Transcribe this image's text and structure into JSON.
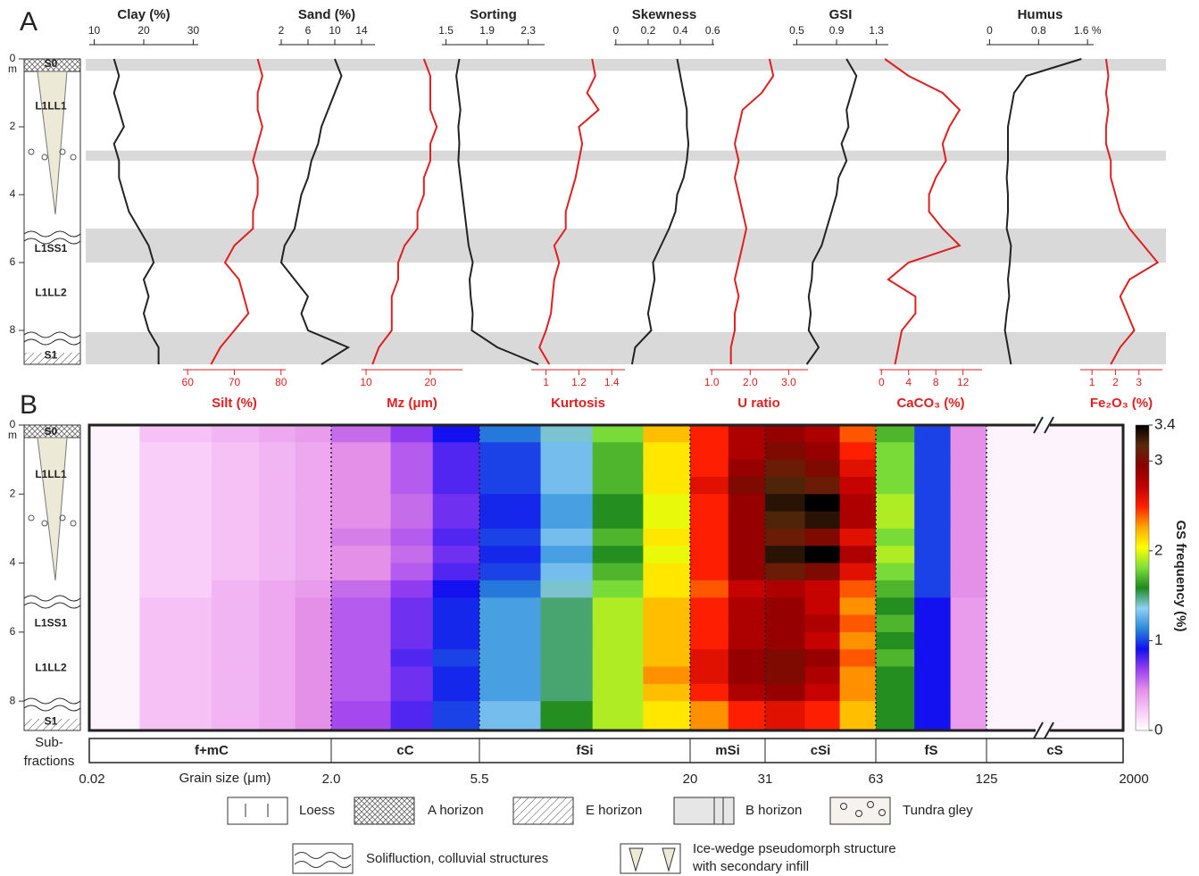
{
  "units": [
    "S0",
    "L1LL1",
    "L1SS1",
    "L1LL2",
    "S1"
  ],
  "legend": [
    [
      "Loess"
    ],
    [
      "A horizon"
    ],
    [
      "E horizon"
    ],
    [
      "B horizon"
    ],
    [
      "Tundra gley"
    ],
    [
      "Solifluction, colluvial structures"
    ],
    [
      "Ice-wedge pseudomorph structure",
      "with secondary infill"
    ]
  ],
  "chart_data": [
    {
      "type": "profile",
      "panel": "A",
      "depth": [
        0,
        0.5,
        1,
        1.5,
        2,
        2.5,
        3,
        3.5,
        4,
        4.5,
        5,
        5.5,
        6,
        6.5,
        7,
        7.5,
        8,
        8.5,
        9
      ],
      "ylim": [
        0,
        9
      ],
      "yticks": [
        0,
        2,
        4,
        6,
        8
      ],
      "depth_unit": "m",
      "bands": [
        [
          0,
          0.35
        ],
        [
          2.7,
          3.0
        ],
        [
          5.0,
          6.0
        ],
        [
          8.05,
          9.0
        ]
      ],
      "band_color": "#d9d9d9",
      "series": [
        {
          "name": "Clay (%)",
          "axis": "top",
          "color": "#222222",
          "xlim": [
            9,
            31
          ],
          "xticks": [
            10,
            20,
            30
          ],
          "values": [
            14,
            15,
            14,
            15,
            16,
            14,
            15,
            15,
            16,
            17,
            19,
            21,
            22,
            20,
            21,
            20,
            21,
            23,
            23
          ]
        },
        {
          "name": "Silt (%)",
          "axis": "bottom",
          "color": "#e02020",
          "xlim": [
            59,
            81
          ],
          "xticks": [
            60,
            70,
            80
          ],
          "values": [
            75,
            76,
            75,
            75,
            76,
            75,
            74,
            75,
            75,
            74,
            74,
            70,
            68,
            71,
            72,
            73,
            70,
            67,
            65
          ]
        },
        {
          "name": "Sand (%)",
          "axis": "top",
          "color": "#222222",
          "xlim": [
            1.6,
            16
          ],
          "xticks": [
            2,
            6,
            10,
            14
          ],
          "values": [
            10,
            11,
            10,
            9,
            8,
            7.5,
            6.5,
            6,
            5,
            4.5,
            4,
            2.5,
            2,
            4,
            6,
            5,
            6,
            12,
            8
          ]
        },
        {
          "name": "Mz (μm)",
          "axis": "bottom",
          "color": "#e02020",
          "xlim": [
            9.3,
            25
          ],
          "xticks": [
            10,
            20
          ],
          "values": [
            19,
            20,
            20,
            20,
            21,
            20,
            20,
            19,
            19,
            18,
            18,
            16,
            15,
            15,
            14,
            14,
            14,
            12,
            11
          ]
        },
        {
          "name": "Sorting",
          "axis": "top",
          "color": "#222222",
          "xlim": [
            1.46,
            2.46
          ],
          "xticks": [
            1.5,
            1.9,
            2.3
          ],
          "values": [
            1.63,
            1.6,
            1.62,
            1.64,
            1.62,
            1.63,
            1.62,
            1.64,
            1.66,
            1.68,
            1.7,
            1.72,
            1.76,
            1.73,
            1.74,
            1.76,
            1.75,
            2.0,
            2.4
          ]
        },
        {
          "name": "Kurtosis",
          "axis": "bottom",
          "color": "#e02020",
          "xlim": [
            0.91,
            1.48
          ],
          "xticks": [
            1,
            1.2,
            1.4
          ],
          "values": [
            1.28,
            1.3,
            1.25,
            1.32,
            1.2,
            1.22,
            1.2,
            1.18,
            1.15,
            1.12,
            1.12,
            1.05,
            1.08,
            1.05,
            1.04,
            1.03,
            1.0,
            0.96,
            1.02
          ]
        },
        {
          "name": "Skewness",
          "axis": "top",
          "color": "#222222",
          "xlim": [
            -0.01,
            0.61
          ],
          "xticks": [
            0,
            0.2,
            0.4,
            0.6
          ],
          "values": [
            0.38,
            0.4,
            0.42,
            0.44,
            0.44,
            0.45,
            0.44,
            0.42,
            0.38,
            0.37,
            0.33,
            0.28,
            0.23,
            0.24,
            0.22,
            0.2,
            0.22,
            0.12,
            0.1
          ]
        },
        {
          "name": "U  ratio",
          "axis": "bottom",
          "color": "#e02020",
          "xlim": [
            0.95,
            3.5
          ],
          "xticks": [
            {
              "value": 1,
              "label": "1.0"
            },
            {
              "value": 2,
              "label": "2.0"
            },
            {
              "value": 3,
              "label": "3.0"
            }
          ],
          "values": [
            2.5,
            2.6,
            2.3,
            1.8,
            1.7,
            1.6,
            1.7,
            1.6,
            1.7,
            1.8,
            1.9,
            1.8,
            1.7,
            1.6,
            1.7,
            1.6,
            1.6,
            1.5,
            1.5
          ]
        },
        {
          "name": "GSI",
          "axis": "top",
          "color": "#222222",
          "xlim": [
            0.46,
            1.42
          ],
          "xticks": [
            0.5,
            0.9,
            1.3
          ],
          "values": [
            1.0,
            1.1,
            1.05,
            1.0,
            1.02,
            0.95,
            1.0,
            0.92,
            0.9,
            0.85,
            0.8,
            0.75,
            0.66,
            0.65,
            0.62,
            0.64,
            0.62,
            0.72,
            0.6
          ]
        },
        {
          "name": "CaCO₃ (%)",
          "axis": "bottom",
          "color": "#e02020",
          "xlim": [
            -0.3,
            14.8
          ],
          "xticks": [
            0,
            4,
            8,
            12
          ],
          "values": [
            0.5,
            4,
            9,
            11.5,
            10,
            9,
            9.5,
            8,
            7,
            7,
            9,
            11.5,
            4,
            1,
            5,
            5,
            3,
            2.5,
            2
          ]
        },
        {
          "name": "Humus",
          "axis": "top",
          "color": "#222222",
          "xlim": [
            -0.05,
            1.7
          ],
          "xticks": [
            0,
            0.8,
            {
              "value": 1.6,
              "label": "1.6 %"
            }
          ],
          "values": [
            1.5,
            0.6,
            0.4,
            0.35,
            0.3,
            0.3,
            0.3,
            0.28,
            0.3,
            0.3,
            0.28,
            0.35,
            0.33,
            0.3,
            0.32,
            0.28,
            0.25,
            0.3,
            0.35
          ]
        },
        {
          "name": "Fe₂O₃ (%)",
          "axis": "bottom",
          "color": "#e02020",
          "xlim": [
            0.5,
            4.0
          ],
          "xticks": [
            1,
            2,
            3
          ],
          "values": [
            1.6,
            1.7,
            1.6,
            1.7,
            1.6,
            1.6,
            1.8,
            1.8,
            2.0,
            2.2,
            2.6,
            3.2,
            3.8,
            2.6,
            2.2,
            2.5,
            2.8,
            2.2,
            1.8
          ]
        }
      ]
    },
    {
      "type": "heatmap",
      "panel": "B",
      "xlabel": "Grain size (μm)",
      "subfraction_label": [
        "Sub-",
        "fractions"
      ],
      "xticks": [
        0.02,
        {
          "value": 2,
          "label": "2.0"
        },
        5.5,
        20,
        31,
        63,
        125,
        2000
      ],
      "subfractions": [
        "f+mC",
        "cC",
        "fSi",
        "mSi",
        "cSi",
        "fS",
        "cS"
      ],
      "ylim": [
        0,
        8.85
      ],
      "yticks": [
        0,
        2,
        4,
        6,
        8
      ],
      "depth_unit": "m",
      "x_edges": [
        0.02,
        0.05,
        0.2,
        0.5,
        1,
        2,
        3,
        4,
        5.5,
        8,
        11,
        15,
        20,
        25,
        31,
        40,
        50,
        63,
        80,
        100,
        125,
        2000
      ],
      "y_edges": [
        0,
        0.5,
        1,
        1.5,
        2,
        2.5,
        3,
        3.5,
        4,
        4.5,
        5,
        5.5,
        6,
        6.5,
        7,
        7.5,
        8,
        8.5,
        8.85
      ],
      "values": [
        [
          0.05,
          0.25,
          0.3,
          0.35,
          0.4,
          0.55,
          0.7,
          0.9,
          1.1,
          1.4,
          1.8,
          2.2,
          2.5,
          2.8,
          2.9,
          2.8,
          2.4,
          1.7,
          1.0,
          0.45,
          0.05
        ],
        [
          0.05,
          0.2,
          0.25,
          0.3,
          0.35,
          0.45,
          0.6,
          0.8,
          1.0,
          1.3,
          1.7,
          2.1,
          2.5,
          2.8,
          3.0,
          2.9,
          2.5,
          1.8,
          1.0,
          0.45,
          0.05
        ],
        [
          0.05,
          0.2,
          0.25,
          0.3,
          0.35,
          0.45,
          0.6,
          0.8,
          1.0,
          1.3,
          1.7,
          2.1,
          2.5,
          2.9,
          3.1,
          3.0,
          2.6,
          1.8,
          1.0,
          0.45,
          0.05
        ],
        [
          0.05,
          0.2,
          0.25,
          0.3,
          0.35,
          0.45,
          0.6,
          0.8,
          1.0,
          1.3,
          1.7,
          2.1,
          2.6,
          3.0,
          3.2,
          3.1,
          2.7,
          1.8,
          1.0,
          0.45,
          0.05
        ],
        [
          0.05,
          0.2,
          0.25,
          0.3,
          0.35,
          0.45,
          0.55,
          0.75,
          0.95,
          1.2,
          1.6,
          2.0,
          2.5,
          2.9,
          3.3,
          3.4,
          2.8,
          1.9,
          1.0,
          0.45,
          0.05
        ],
        [
          0.05,
          0.2,
          0.25,
          0.3,
          0.35,
          0.45,
          0.55,
          0.75,
          0.95,
          1.2,
          1.6,
          2.0,
          2.5,
          2.9,
          3.2,
          3.3,
          2.8,
          1.9,
          1.0,
          0.45,
          0.05
        ],
        [
          0.05,
          0.2,
          0.25,
          0.3,
          0.35,
          0.5,
          0.6,
          0.8,
          1.0,
          1.3,
          1.7,
          2.1,
          2.5,
          2.9,
          3.1,
          3.0,
          2.6,
          1.8,
          1.0,
          0.45,
          0.05
        ],
        [
          0.05,
          0.2,
          0.25,
          0.3,
          0.35,
          0.45,
          0.55,
          0.75,
          0.95,
          1.2,
          1.6,
          2.0,
          2.5,
          2.9,
          3.3,
          3.4,
          2.8,
          1.9,
          1.0,
          0.45,
          0.05
        ],
        [
          0.05,
          0.2,
          0.25,
          0.3,
          0.35,
          0.45,
          0.6,
          0.8,
          1.0,
          1.3,
          1.7,
          2.1,
          2.5,
          2.9,
          3.1,
          3.0,
          2.6,
          1.8,
          1.0,
          0.45,
          0.05
        ],
        [
          0.05,
          0.2,
          0.3,
          0.35,
          0.4,
          0.55,
          0.7,
          0.9,
          1.1,
          1.4,
          1.8,
          2.1,
          2.4,
          2.7,
          2.8,
          2.7,
          2.4,
          1.7,
          1.0,
          0.45,
          0.05
        ],
        [
          0.05,
          0.25,
          0.3,
          0.35,
          0.45,
          0.6,
          0.75,
          0.95,
          1.2,
          1.5,
          1.9,
          2.2,
          2.5,
          2.8,
          2.9,
          2.7,
          2.3,
          1.6,
          0.9,
          0.4,
          0.05
        ],
        [
          0.05,
          0.25,
          0.3,
          0.35,
          0.45,
          0.6,
          0.75,
          0.95,
          1.2,
          1.5,
          1.9,
          2.2,
          2.5,
          2.8,
          2.9,
          2.8,
          2.4,
          1.7,
          0.9,
          0.4,
          0.05
        ],
        [
          0.05,
          0.25,
          0.3,
          0.35,
          0.45,
          0.6,
          0.75,
          0.95,
          1.2,
          1.5,
          1.9,
          2.2,
          2.5,
          2.8,
          2.9,
          2.7,
          2.3,
          1.6,
          0.9,
          0.4,
          0.05
        ],
        [
          0.05,
          0.25,
          0.3,
          0.35,
          0.45,
          0.6,
          0.8,
          1.0,
          1.2,
          1.5,
          1.9,
          2.2,
          2.6,
          2.9,
          3.0,
          2.9,
          2.4,
          1.7,
          0.9,
          0.4,
          0.05
        ],
        [
          0.05,
          0.25,
          0.3,
          0.35,
          0.45,
          0.6,
          0.75,
          0.95,
          1.2,
          1.5,
          1.9,
          2.3,
          2.6,
          2.9,
          3.0,
          2.8,
          2.3,
          1.6,
          0.9,
          0.4,
          0.05
        ],
        [
          0.05,
          0.25,
          0.3,
          0.35,
          0.45,
          0.6,
          0.75,
          0.95,
          1.2,
          1.5,
          1.9,
          2.2,
          2.5,
          2.8,
          2.9,
          2.7,
          2.3,
          1.6,
          0.9,
          0.4,
          0.05
        ],
        [
          0.05,
          0.25,
          0.3,
          0.35,
          0.45,
          0.65,
          0.8,
          1.0,
          1.3,
          1.6,
          1.9,
          2.1,
          2.3,
          2.5,
          2.6,
          2.5,
          2.2,
          1.6,
          0.9,
          0.4,
          0.05
        ],
        [
          0.05,
          0.25,
          0.3,
          0.35,
          0.45,
          0.65,
          0.8,
          1.0,
          1.3,
          1.6,
          1.9,
          2.1,
          2.3,
          2.5,
          2.6,
          2.5,
          2.2,
          1.6,
          0.9,
          0.4,
          0.05
        ]
      ],
      "zlim": [
        0,
        3.4
      ],
      "zticks": [
        0,
        1,
        2,
        3,
        3.4
      ],
      "zlabel": "GS frequency (%)",
      "colormap": [
        "#ffffff",
        "#f8c8f8",
        "#e48ee8",
        "#9b3ff0",
        "#1010f0",
        "#2a8ad8",
        "#8fd0f5",
        "#1e8a1e",
        "#7ee03a",
        "#ffff00",
        "#ffa500",
        "#ff2000",
        "#c00000",
        "#8b0000",
        "#5a2a0a",
        "#000000"
      ]
    }
  ]
}
